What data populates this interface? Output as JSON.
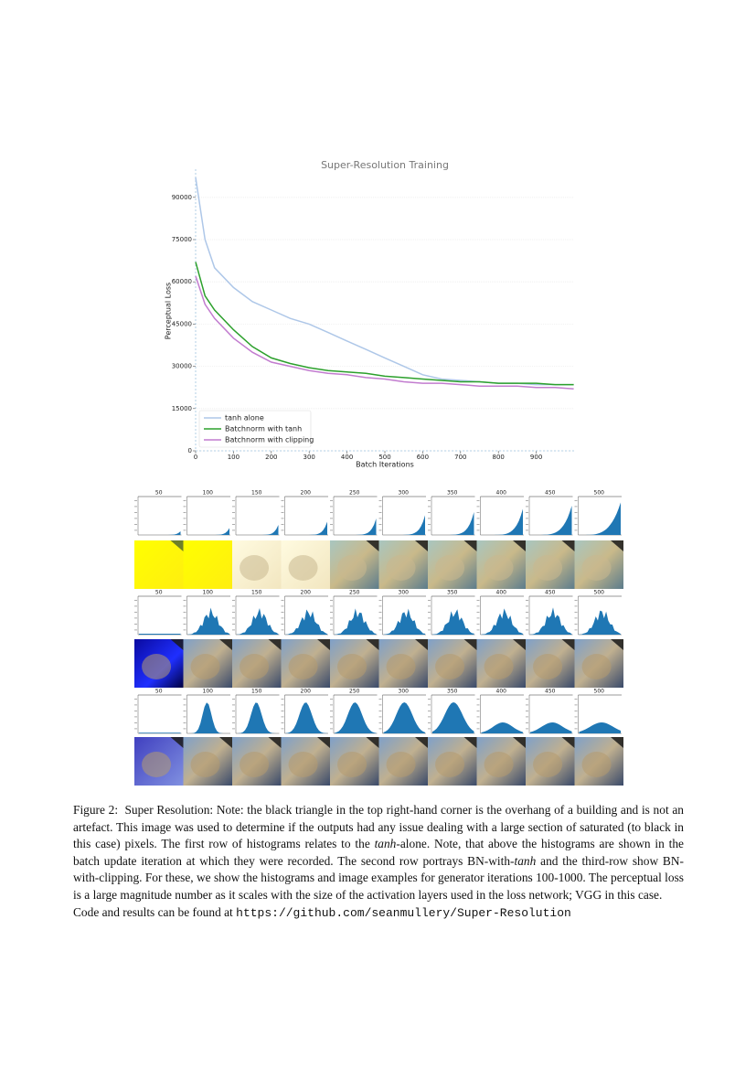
{
  "chart_data": {
    "type": "line",
    "title": "Super-Resolution Training",
    "x_label": "Batch Iterations",
    "y_label": "Perceptual Loss",
    "x": [
      0,
      25,
      50,
      100,
      150,
      200,
      250,
      300,
      350,
      400,
      450,
      500,
      550,
      600,
      650,
      700,
      750,
      800,
      850,
      900,
      950,
      999
    ],
    "series": [
      {
        "name": "tanh alone",
        "color": "#aec7e8",
        "values": [
          97000,
          75000,
          65000,
          58000,
          53000,
          50000,
          47000,
          45000,
          42000,
          39000,
          36000,
          33000,
          30000,
          27000,
          25500,
          25000,
          24500,
          24000,
          24000,
          23500,
          23500,
          23500
        ]
      },
      {
        "name": "Batchnorm with tanh",
        "color": "#2ca02c",
        "values": [
          67000,
          55000,
          50000,
          43000,
          37000,
          33000,
          31000,
          29500,
          28500,
          28000,
          27500,
          26500,
          26000,
          25500,
          25000,
          24500,
          24500,
          24000,
          24000,
          24000,
          23500,
          23500
        ]
      },
      {
        "name": "Batchnorm with clipping",
        "color": "#c27ccf",
        "values": [
          62000,
          52000,
          47000,
          40000,
          35000,
          31500,
          30000,
          28500,
          27500,
          27000,
          26000,
          25500,
          24500,
          24000,
          24000,
          23500,
          23000,
          23000,
          23000,
          22500,
          22500,
          22000
        ]
      }
    ],
    "xlim": [
      0,
      1000
    ],
    "xticks": [
      0,
      100,
      200,
      300,
      400,
      500,
      600,
      700,
      800,
      900
    ],
    "ylim": [
      0,
      100000
    ],
    "yticks": [
      0,
      15000,
      30000,
      45000,
      60000,
      75000,
      90000
    ],
    "grid": true,
    "legend": "lower left"
  },
  "figure_grid": {
    "column_labels": [
      "50",
      "100",
      "150",
      "200",
      "250",
      "300",
      "350",
      "400",
      "450",
      "500"
    ]
  },
  "caption": {
    "label": "Figure 2:",
    "segments": [
      {
        "text": "Super Resolution: Note: the black triangle in the top right-hand corner is the overhang of a building and is not an artefact. This image was used to determine if the outputs had any issue dealing with a large section of saturated (to black in this case) pixels. The first row of histograms relates to the "
      },
      {
        "text": "tanh",
        "italic": true
      },
      {
        "text": "-alone. Note, that above the histograms are shown in the batch update iteration at which they were recorded. The second row portrays BN-with-"
      },
      {
        "text": "tanh",
        "italic": true
      },
      {
        "text": " and the third-row show BN-with-clipping. For these, we show the histograms and image examples for generator iterations 100-1000. The perceptual loss is a large magnitude number as it scales with the size of the activation layers used in the loss network; VGG in this case."
      }
    ],
    "code_prefix": "Code and results can be found at",
    "url": "https://github.com/seanmullery/Super-Resolution"
  }
}
